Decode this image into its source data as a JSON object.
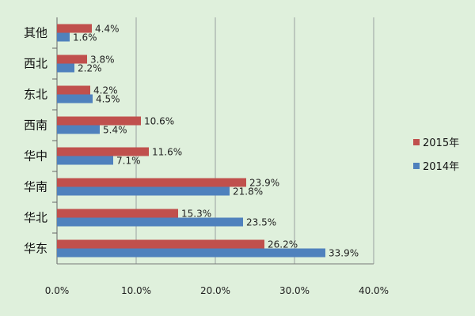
{
  "chart_data": {
    "type": "bar",
    "orientation": "horizontal",
    "categories": [
      "其他",
      "西北",
      "东北",
      "西南",
      "华中",
      "华南",
      "华北",
      "华东"
    ],
    "series": [
      {
        "name": "2015年",
        "values": [
          4.4,
          3.8,
          4.2,
          10.6,
          11.6,
          23.9,
          15.3,
          26.2
        ]
      },
      {
        "name": "2014年",
        "values": [
          1.6,
          2.2,
          4.5,
          5.4,
          7.1,
          21.8,
          23.5,
          33.9
        ]
      }
    ],
    "data_labels": [
      [
        "4.4%",
        "3.8%",
        "4.2%",
        "10.6%",
        "11.6%",
        "23.9%",
        "15.3%",
        "26.2%"
      ],
      [
        "1.6%",
        "2.2%",
        "4.5%",
        "5.4%",
        "7.1%",
        "21.8%",
        "23.5%",
        "33.9%"
      ]
    ],
    "x_ticks": [
      "0.0%",
      "10.0%",
      "20.0%",
      "30.0%",
      "40.0%"
    ],
    "xlim": [
      0,
      40
    ],
    "grid": true,
    "legend_position": "right",
    "colors": {
      "2015年": "#c0504d",
      "2014年": "#4f81bd",
      "background": "#dff0dc",
      "grid": "#9aa0a0"
    }
  }
}
